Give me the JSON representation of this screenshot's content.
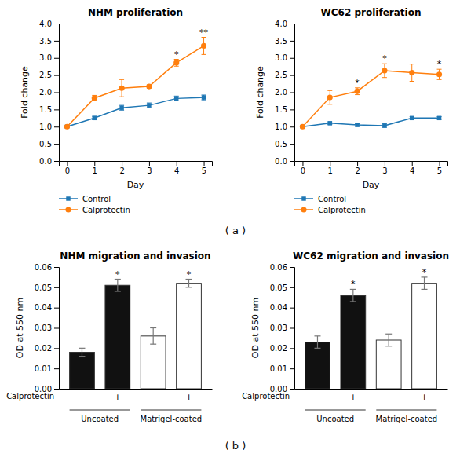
{
  "chart_data": [
    {
      "type": "line",
      "title": "NHM proliferation",
      "xlabel": "Day",
      "ylabel": "Fold change",
      "x": [
        0,
        1,
        2,
        3,
        4,
        5
      ],
      "series": [
        {
          "name": "Control",
          "marker": "square",
          "values": [
            1.0,
            1.25,
            1.55,
            1.62,
            1.82,
            1.85
          ],
          "errors": [
            0.03,
            0.05,
            0.07,
            0.07,
            0.07,
            0.07
          ]
        },
        {
          "name": "Calprotectin",
          "marker": "circle",
          "values": [
            1.0,
            1.83,
            2.12,
            2.17,
            2.86,
            3.35
          ],
          "errors": [
            0.03,
            0.08,
            0.25,
            0.05,
            0.1,
            0.25
          ]
        }
      ],
      "annotations": [
        {
          "x": 4,
          "text": "*"
        },
        {
          "x": 5,
          "text": "**"
        }
      ],
      "xlim": [
        -0.3,
        5.3
      ],
      "xticks": [
        0,
        1,
        2,
        3,
        4,
        5
      ],
      "ylim": [
        0,
        4
      ],
      "yticks": [
        {
          "value": 0,
          "label": "0.0"
        },
        0.5,
        {
          "value": 1.0,
          "label": "1.0"
        },
        1.5,
        {
          "value": 2.0,
          "label": "2.0"
        },
        2.5,
        {
          "value": 3.0,
          "label": "3.0"
        },
        3.5,
        {
          "value": 4.0,
          "label": "4.0"
        }
      ],
      "legend": "bottom",
      "grid": false
    },
    {
      "type": "line",
      "title": "WC62 proliferation",
      "xlabel": "Day",
      "ylabel": "Fold change",
      "x": [
        0,
        1,
        2,
        3,
        4,
        5
      ],
      "series": [
        {
          "name": "Control",
          "marker": "square",
          "values": [
            1.0,
            1.1,
            1.05,
            1.03,
            1.25,
            1.25
          ],
          "errors": [
            0.03,
            0.04,
            0.04,
            0.05,
            0.04,
            0.04
          ]
        },
        {
          "name": "Calprotectin",
          "marker": "circle",
          "values": [
            1.0,
            1.85,
            2.03,
            2.63,
            2.57,
            2.52
          ],
          "errors": [
            0.03,
            0.2,
            0.1,
            0.2,
            0.25,
            0.15
          ]
        }
      ],
      "annotations": [
        {
          "x": 2,
          "text": "*"
        },
        {
          "x": 3,
          "text": "*"
        },
        {
          "x": 5,
          "text": "*"
        }
      ],
      "xlim": [
        -0.3,
        5.3
      ],
      "xticks": [
        0,
        1,
        2,
        3,
        4,
        5
      ],
      "ylim": [
        0,
        4
      ],
      "yticks": [
        {
          "value": 0,
          "label": "0.0"
        },
        0.5,
        {
          "value": 1.0,
          "label": "1.0"
        },
        1.5,
        {
          "value": 2.0,
          "label": "2.0"
        },
        2.5,
        {
          "value": 3.0,
          "label": "3.0"
        },
        3.5,
        {
          "value": 4.0,
          "label": "4.0"
        }
      ],
      "legend": "bottom",
      "grid": false
    },
    {
      "type": "bar",
      "title": "NHM migration and invasion",
      "xlabel": "Calprotectin",
      "ylabel": "OD at 550 nm",
      "categories": [
        "−",
        "+",
        "−",
        "+"
      ],
      "groups": [
        "Uncoated",
        "Matrigel-coated"
      ],
      "values": [
        0.018,
        0.051,
        0.026,
        0.052
      ],
      "errors": [
        0.002,
        0.003,
        0.004,
        0.002
      ],
      "colors": [
        "#111111",
        "#111111",
        "#ffffff",
        "#ffffff"
      ],
      "annotations": [
        {
          "x": 1,
          "text": "*"
        },
        {
          "x": 3,
          "text": "*"
        }
      ],
      "ylim": [
        0,
        0.06
      ],
      "yticks": [
        {
          "value": 0,
          "label": "0.00"
        },
        0.01,
        0.02,
        0.03,
        0.04,
        0.05,
        0.06
      ],
      "grid": false
    },
    {
      "type": "bar",
      "title": "WC62 migration and invasion",
      "xlabel": "Calprotectin",
      "ylabel": "OD at 550 nm",
      "categories": [
        "−",
        "+",
        "−",
        "+"
      ],
      "groups": [
        "Uncoated",
        "Matrigel-coated"
      ],
      "values": [
        0.023,
        0.046,
        0.024,
        0.052
      ],
      "errors": [
        0.003,
        0.003,
        0.003,
        0.003
      ],
      "colors": [
        "#111111",
        "#111111",
        "#ffffff",
        "#ffffff"
      ],
      "annotations": [
        {
          "x": 1,
          "text": "*"
        },
        {
          "x": 3,
          "text": "*"
        }
      ],
      "ylim": [
        0,
        0.06
      ],
      "yticks": [
        {
          "value": 0,
          "label": "0.00"
        },
        0.01,
        0.02,
        0.03,
        0.04,
        0.05,
        0.06
      ],
      "grid": false
    }
  ],
  "annotations": [
    {
      "text": "( a )"
    },
    {
      "text": "( b )"
    }
  ]
}
